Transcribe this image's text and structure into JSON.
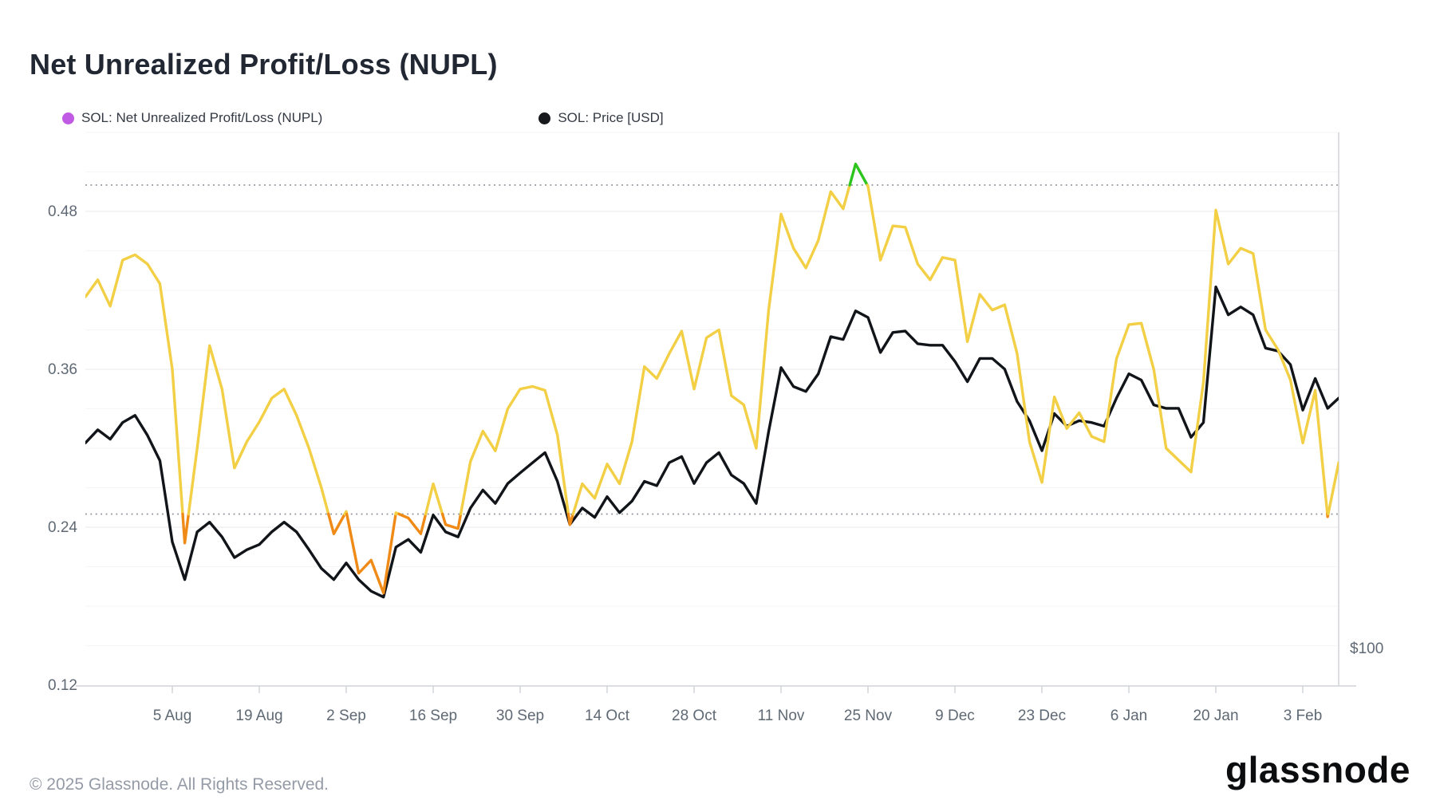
{
  "title": "Net Unrealized Profit/Loss (NUPL)",
  "legend": [
    {
      "label": "SOL: Net Unrealized Profit/Loss (NUPL)",
      "dot_color": "#c05ae4"
    },
    {
      "label": "SOL: Price [USD]",
      "dot_color": "#17191d"
    }
  ],
  "footer": {
    "copyright": "© 2025 Glassnode. All Rights Reserved.",
    "brand": "glassnode"
  },
  "colors": {
    "nupl_below_025": "#f08a17",
    "nupl_mid": "#f2cf44",
    "nupl_above_050": "#2cc41d",
    "price_line": "#111418",
    "grid_major": "#e8eaee",
    "grid_minor": "#f4f5f7",
    "axis_line": "#d0d4da",
    "dotted_threshold": "#8a9099",
    "tick_label": "#5f6974"
  },
  "chart_data": {
    "type": "line",
    "title": "Net Unrealized Profit/Loss (NUPL)",
    "x": [
      "22 Jul",
      "24 Jul",
      "26 Jul",
      "28 Jul",
      "30 Jul",
      "1 Aug",
      "3 Aug",
      "5 Aug",
      "7 Aug",
      "9 Aug",
      "11 Aug",
      "13 Aug",
      "15 Aug",
      "17 Aug",
      "19 Aug",
      "21 Aug",
      "23 Aug",
      "25 Aug",
      "27 Aug",
      "29 Aug",
      "31 Aug",
      "2 Sep",
      "4 Sep",
      "6 Sep",
      "8 Sep",
      "10 Sep",
      "12 Sep",
      "14 Sep",
      "16 Sep",
      "18 Sep",
      "20 Sep",
      "22 Sep",
      "24 Sep",
      "26 Sep",
      "28 Sep",
      "30 Sep",
      "2 Oct",
      "4 Oct",
      "6 Oct",
      "8 Oct",
      "10 Oct",
      "12 Oct",
      "14 Oct",
      "16 Oct",
      "18 Oct",
      "20 Oct",
      "22 Oct",
      "24 Oct",
      "26 Oct",
      "28 Oct",
      "30 Oct",
      "1 Nov",
      "3 Nov",
      "5 Nov",
      "7 Nov",
      "9 Nov",
      "11 Nov",
      "13 Nov",
      "15 Nov",
      "17 Nov",
      "19 Nov",
      "21 Nov",
      "23 Nov",
      "25 Nov",
      "27 Nov",
      "29 Nov",
      "1 Dec",
      "3 Dec",
      "5 Dec",
      "7 Dec",
      "9 Dec",
      "11 Dec",
      "13 Dec",
      "15 Dec",
      "17 Dec",
      "19 Dec",
      "21 Dec",
      "23 Dec",
      "25 Dec",
      "27 Dec",
      "29 Dec",
      "31 Dec",
      "2 Jan",
      "4 Jan",
      "6 Jan",
      "8 Jan",
      "10 Jan",
      "12 Jan",
      "14 Jan",
      "16 Jan",
      "18 Jan",
      "20 Jan",
      "22 Jan",
      "24 Jan",
      "26 Jan",
      "28 Jan",
      "30 Jan",
      "1 Feb",
      "3 Feb",
      "5 Feb",
      "7 Feb",
      "9 Feb"
    ],
    "series": [
      {
        "name": "SOL: Net Unrealized Profit/Loss (NUPL)",
        "axis": "left",
        "color_rule": "orange below 0.25, yellow 0.25-0.50, green above 0.50",
        "values": [
          0.415,
          0.428,
          0.408,
          0.443,
          0.447,
          0.44,
          0.425,
          0.36,
          0.228,
          0.3,
          0.378,
          0.345,
          0.285,
          0.305,
          0.32,
          0.338,
          0.345,
          0.325,
          0.3,
          0.27,
          0.235,
          0.252,
          0.205,
          0.215,
          0.19,
          0.251,
          0.247,
          0.235,
          0.273,
          0.242,
          0.239,
          0.29,
          0.313,
          0.298,
          0.33,
          0.345,
          0.347,
          0.344,
          0.31,
          0.242,
          0.273,
          0.262,
          0.288,
          0.273,
          0.305,
          0.362,
          0.353,
          0.372,
          0.389,
          0.345,
          0.384,
          0.39,
          0.34,
          0.333,
          0.3,
          0.405,
          0.478,
          0.452,
          0.437,
          0.458,
          0.495,
          0.482,
          0.516,
          0.499,
          0.443,
          0.469,
          0.468,
          0.44,
          0.428,
          0.445,
          0.443,
          0.381,
          0.417,
          0.405,
          0.409,
          0.372,
          0.305,
          0.274,
          0.339,
          0.315,
          0.327,
          0.309,
          0.305,
          0.368,
          0.394,
          0.395,
          0.36,
          0.3,
          0.291,
          0.282,
          0.35,
          0.481,
          0.44,
          0.452,
          0.448,
          0.39,
          0.375,
          0.352,
          0.304,
          0.344,
          0.248,
          0.289
        ]
      },
      {
        "name": "SOL: Price [USD]",
        "axis": "right",
        "unit": "USD",
        "values": [
          181,
          188,
          183,
          192,
          196,
          185,
          172,
          136,
          122,
          140,
          144,
          138,
          130,
          133,
          135,
          140,
          144,
          140,
          133,
          126,
          122,
          128,
          122,
          118,
          116,
          134,
          137,
          132,
          147,
          140,
          138,
          150,
          158,
          152,
          161,
          166,
          171,
          176,
          162,
          143,
          150,
          146,
          155,
          148,
          153,
          162,
          160,
          171,
          174,
          161,
          171,
          176,
          165,
          161,
          152,
          187,
          225,
          213,
          210,
          221,
          246,
          244,
          265,
          260,
          235,
          249,
          250,
          241,
          240,
          240,
          229,
          216,
          231,
          231,
          224,
          204,
          193,
          177,
          197,
          190,
          193,
          192,
          190,
          206,
          221,
          217,
          202,
          200,
          200,
          184,
          192,
          284,
          262,
          268,
          262,
          238,
          236,
          227,
          199,
          218,
          200,
          206
        ]
      }
    ],
    "y_left": {
      "tick_labels": [
        "0.48",
        "0.36",
        "0.24",
        "0.12"
      ],
      "tick_values": [
        0.48,
        0.36,
        0.24,
        0.12
      ],
      "range": [
        0.12,
        0.54
      ],
      "threshold_dotted_lines": [
        0.5,
        0.25
      ],
      "grid_step": 0.03
    },
    "y_right": {
      "visible_tick_label": "$100",
      "visible_tick_value": 100,
      "scale": "log"
    },
    "x_tick_labels": [
      "5 Aug",
      "19 Aug",
      "2 Sep",
      "16 Sep",
      "30 Sep",
      "14 Oct",
      "28 Oct",
      "11 Nov",
      "25 Nov",
      "9 Dec",
      "23 Dec",
      "6 Jan",
      "20 Jan",
      "3 Feb"
    ],
    "legend_position": "top-left",
    "grid": "horizontal-only"
  }
}
